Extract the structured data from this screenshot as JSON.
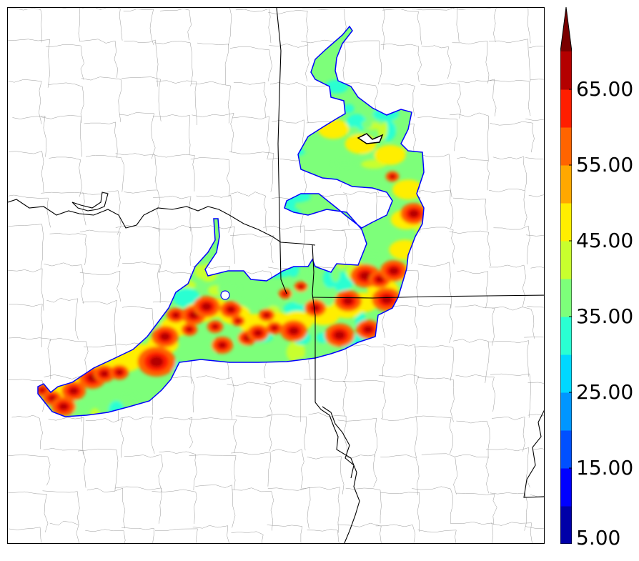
{
  "colorbar": {
    "levels": [
      5,
      10,
      15,
      20,
      25,
      30,
      35,
      40,
      45,
      50,
      55,
      60,
      65,
      70
    ],
    "colors": [
      "#0000a8",
      "#0000ff",
      "#0050ff",
      "#0096ff",
      "#00d8ff",
      "#2affd2",
      "#7dff7a",
      "#c8ff2e",
      "#ffee00",
      "#ffa800",
      "#ff6400",
      "#ff1e00",
      "#b40000",
      "#7a0000"
    ],
    "extend": "max",
    "tick_labels": [
      "5.00",
      "15.00",
      "25.00",
      "35.00",
      "45.00",
      "55.00",
      "65.00"
    ]
  },
  "map": {
    "background": "#ffffff",
    "state_line_color": "#000000",
    "county_line_color": "#9a9a9a",
    "outline_color": "#0000ff"
  }
}
